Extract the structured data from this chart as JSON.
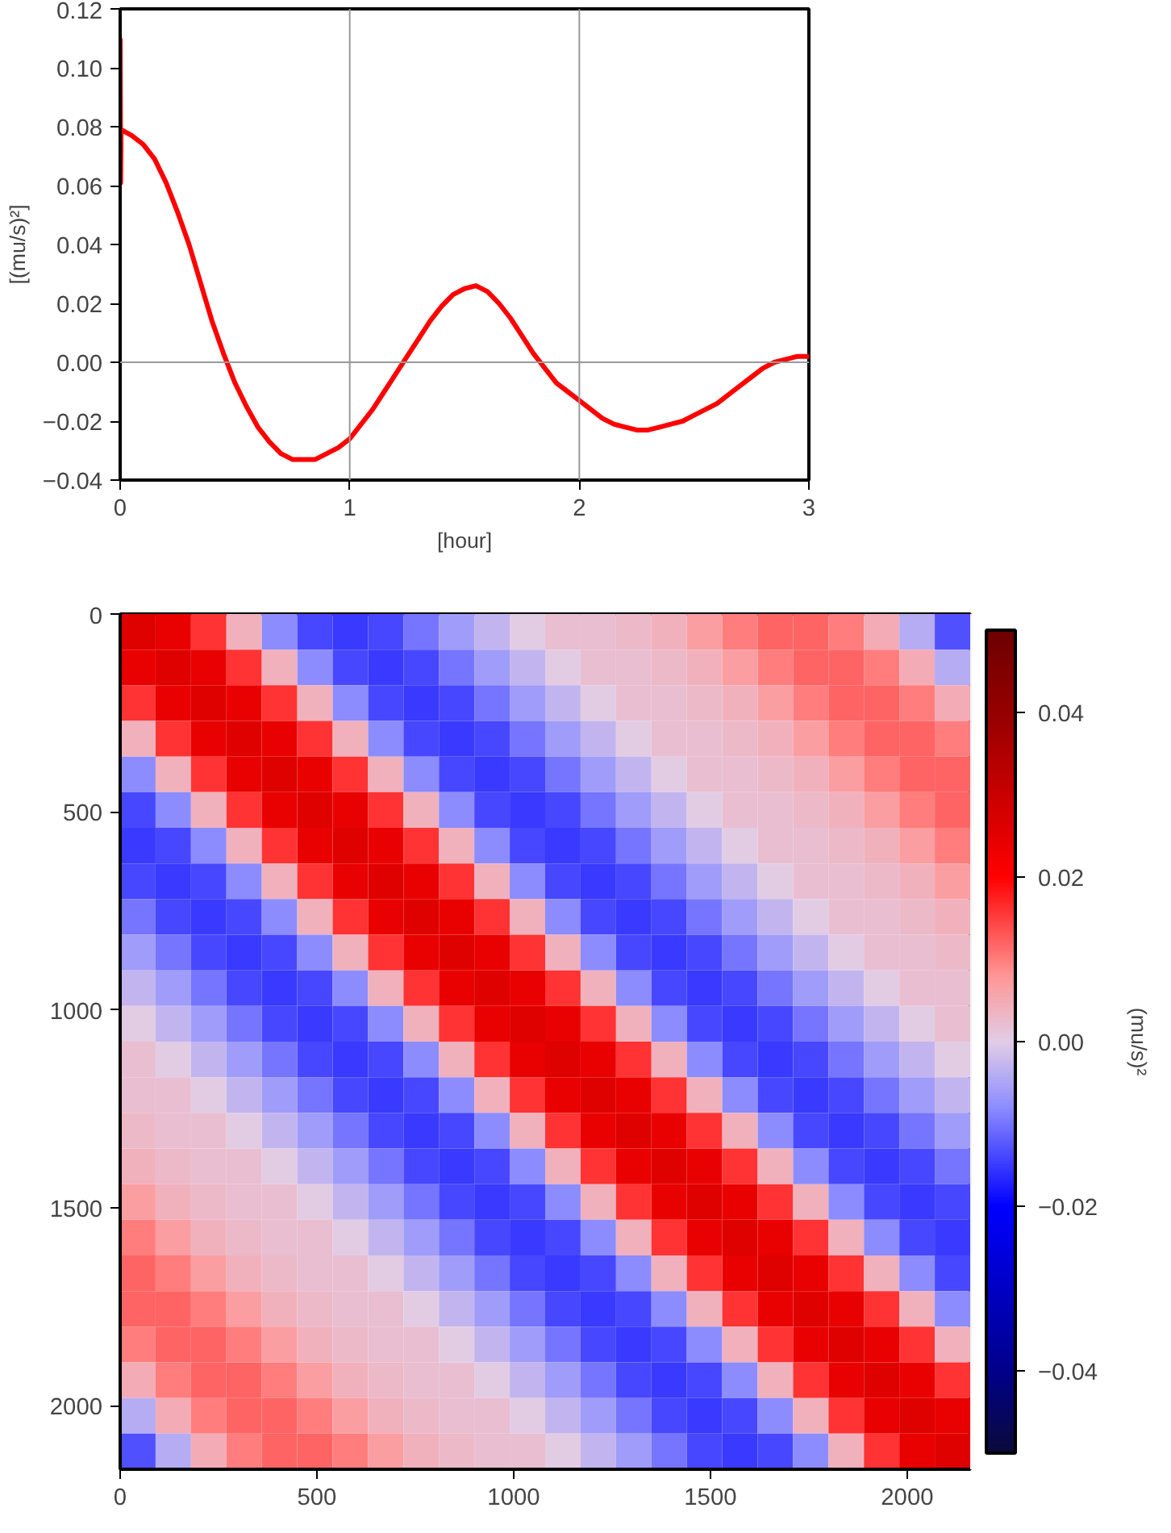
{
  "chart_data": [
    {
      "type": "line",
      "xlabel": "[hour]",
      "ylabel": "[(mu/s)²]",
      "xlim": [
        0,
        3
      ],
      "ylim": [
        -0.04,
        0.12
      ],
      "xticks": [
        0,
        1,
        2,
        3
      ],
      "yticks": [
        {
          "value": -0.04,
          "label": "−0.04"
        },
        {
          "value": -0.02,
          "label": "−0.02"
        },
        {
          "value": 0,
          "label": "0.00"
        },
        {
          "value": 0.02,
          "label": "0.02"
        },
        {
          "value": 0.04,
          "label": "0.04"
        },
        {
          "value": 0.06,
          "label": "0.06"
        },
        {
          "value": 0.08,
          "label": "0.08"
        },
        {
          "value": 0.1,
          "label": "0.10"
        },
        {
          "value": 0.12,
          "label": "0.12"
        }
      ],
      "ref_lines": [
        {
          "axis": "x",
          "value": 1,
          "color": "#999999"
        },
        {
          "axis": "x",
          "value": 2,
          "color": "#999999"
        },
        {
          "axis": "y",
          "value": 0,
          "color": "#999999"
        }
      ],
      "x": [
        0,
        0.002,
        0.004,
        0.05,
        0.1,
        0.15,
        0.2,
        0.25,
        0.3,
        0.35,
        0.4,
        0.45,
        0.5,
        0.55,
        0.6,
        0.65,
        0.7,
        0.75,
        0.8,
        0.85,
        0.9,
        0.95,
        1.0,
        1.05,
        1.1,
        1.15,
        1.2,
        1.25,
        1.3,
        1.35,
        1.4,
        1.45,
        1.5,
        1.55,
        1.6,
        1.65,
        1.7,
        1.75,
        1.8,
        1.85,
        1.9,
        1.95,
        2.0,
        2.05,
        2.1,
        2.15,
        2.2,
        2.25,
        2.3,
        2.35,
        2.4,
        2.45,
        2.5,
        2.55,
        2.6,
        2.65,
        2.7,
        2.75,
        2.8,
        2.85,
        2.9,
        2.95,
        3.0
      ],
      "series": [
        {
          "color": "#ff0000",
          "values": [
            0.11,
            0.061,
            0.079,
            0.077,
            0.074,
            0.069,
            0.061,
            0.051,
            0.04,
            0.027,
            0.014,
            0.003,
            -0.007,
            -0.015,
            -0.022,
            -0.027,
            -0.031,
            -0.033,
            -0.033,
            -0.033,
            -0.031,
            -0.029,
            -0.026,
            -0.021,
            -0.016,
            -0.01,
            -0.004,
            0.002,
            0.008,
            0.014,
            0.019,
            0.023,
            0.025,
            0.026,
            0.024,
            0.02,
            0.015,
            0.009,
            0.003,
            -0.002,
            -0.007,
            -0.01,
            -0.013,
            -0.016,
            -0.019,
            -0.021,
            -0.022,
            -0.023,
            -0.023,
            -0.022,
            -0.021,
            -0.02,
            -0.018,
            -0.016,
            -0.014,
            -0.011,
            -0.008,
            -0.005,
            -0.002,
            0.0,
            0.001,
            0.002,
            0.002
          ]
        }
      ]
    },
    {
      "type": "heatmap",
      "clabel": "(mu/s)²",
      "xlim": [
        0,
        2160
      ],
      "ylim": [
        2160,
        0
      ],
      "xticks": [
        0,
        500,
        1000,
        1500,
        2000
      ],
      "yticks": [
        0,
        500,
        1000,
        1500,
        2000
      ],
      "clim": [
        -0.05,
        0.05
      ],
      "cticks": [
        {
          "value": -0.04,
          "label": "−0.04"
        },
        {
          "value": -0.02,
          "label": "−0.02"
        },
        {
          "value": 0,
          "label": "0.00"
        },
        {
          "value": 0.02,
          "label": "0.02"
        },
        {
          "value": 0.04,
          "label": "0.04"
        }
      ],
      "x": [
        45,
        135,
        225,
        315,
        405,
        495,
        585,
        675,
        765,
        855,
        945,
        1035,
        1125,
        1215,
        1305,
        1395,
        1485,
        1575,
        1665,
        1755,
        1845,
        1935,
        2025,
        2115
      ],
      "y": [
        45,
        135,
        225,
        315,
        405,
        495,
        585,
        675,
        765,
        855,
        945,
        1035,
        1125,
        1215,
        1305,
        1395,
        1485,
        1575,
        1665,
        1755,
        1845,
        1935,
        2025,
        2115
      ],
      "cells": [
        [
          0.026,
          0.024,
          0.016,
          0.004,
          -0.008,
          -0.014,
          -0.015,
          -0.014,
          -0.01,
          -0.006,
          -0.003,
          0,
          0.002,
          0.002,
          0.003,
          0.004,
          0.007,
          0.01,
          0.012,
          0.012,
          0.01,
          0.005,
          -0.004,
          -0.013
        ],
        [
          0.024,
          0.026,
          0.024,
          0.016,
          0.004,
          -0.008,
          -0.014,
          -0.015,
          -0.014,
          -0.01,
          -0.006,
          -0.003,
          0,
          0.002,
          0.002,
          0.003,
          0.004,
          0.007,
          0.01,
          0.012,
          0.012,
          0.01,
          0.005,
          -0.004
        ],
        [
          0.016,
          0.024,
          0.026,
          0.024,
          0.016,
          0.004,
          -0.008,
          -0.014,
          -0.015,
          -0.014,
          -0.01,
          -0.006,
          -0.003,
          0,
          0.002,
          0.002,
          0.003,
          0.004,
          0.007,
          0.01,
          0.012,
          0.012,
          0.01,
          0.005
        ],
        [
          0.004,
          0.016,
          0.024,
          0.026,
          0.024,
          0.016,
          0.004,
          -0.008,
          -0.014,
          -0.015,
          -0.014,
          -0.01,
          -0.006,
          -0.003,
          0,
          0.002,
          0.002,
          0.003,
          0.004,
          0.007,
          0.01,
          0.012,
          0.012,
          0.01
        ],
        [
          -0.008,
          0.004,
          0.016,
          0.024,
          0.026,
          0.024,
          0.016,
          0.004,
          -0.008,
          -0.014,
          -0.015,
          -0.014,
          -0.01,
          -0.006,
          -0.003,
          0,
          0.002,
          0.002,
          0.003,
          0.004,
          0.007,
          0.01,
          0.012,
          0.012
        ],
        [
          -0.014,
          -0.008,
          0.004,
          0.016,
          0.024,
          0.026,
          0.024,
          0.016,
          0.004,
          -0.008,
          -0.014,
          -0.015,
          -0.014,
          -0.01,
          -0.006,
          -0.003,
          0,
          0.002,
          0.002,
          0.003,
          0.004,
          0.007,
          0.01,
          0.012
        ],
        [
          -0.015,
          -0.014,
          -0.008,
          0.004,
          0.016,
          0.024,
          0.026,
          0.024,
          0.016,
          0.004,
          -0.008,
          -0.014,
          -0.015,
          -0.014,
          -0.01,
          -0.006,
          -0.003,
          0,
          0.002,
          0.002,
          0.003,
          0.004,
          0.007,
          0.01
        ],
        [
          -0.014,
          -0.015,
          -0.014,
          -0.008,
          0.004,
          0.016,
          0.024,
          0.026,
          0.024,
          0.016,
          0.004,
          -0.008,
          -0.014,
          -0.015,
          -0.014,
          -0.01,
          -0.006,
          -0.003,
          0,
          0.002,
          0.002,
          0.003,
          0.004,
          0.007
        ],
        [
          -0.01,
          -0.014,
          -0.015,
          -0.014,
          -0.008,
          0.004,
          0.016,
          0.024,
          0.026,
          0.024,
          0.016,
          0.004,
          -0.008,
          -0.014,
          -0.015,
          -0.014,
          -0.01,
          -0.006,
          -0.003,
          0,
          0.002,
          0.002,
          0.003,
          0.004
        ],
        [
          -0.006,
          -0.01,
          -0.014,
          -0.015,
          -0.014,
          -0.008,
          0.004,
          0.016,
          0.024,
          0.026,
          0.024,
          0.016,
          0.004,
          -0.008,
          -0.014,
          -0.015,
          -0.014,
          -0.01,
          -0.006,
          -0.003,
          0,
          0.002,
          0.002,
          0.003
        ],
        [
          -0.003,
          -0.006,
          -0.01,
          -0.014,
          -0.015,
          -0.014,
          -0.008,
          0.004,
          0.016,
          0.024,
          0.026,
          0.024,
          0.016,
          0.004,
          -0.008,
          -0.014,
          -0.015,
          -0.014,
          -0.01,
          -0.006,
          -0.003,
          0,
          0.002,
          0.002
        ],
        [
          0,
          -0.003,
          -0.006,
          -0.01,
          -0.014,
          -0.015,
          -0.014,
          -0.008,
          0.004,
          0.016,
          0.024,
          0.026,
          0.024,
          0.016,
          0.004,
          -0.008,
          -0.014,
          -0.015,
          -0.014,
          -0.01,
          -0.006,
          -0.003,
          0,
          0.002
        ],
        [
          0.002,
          0,
          -0.003,
          -0.006,
          -0.01,
          -0.014,
          -0.015,
          -0.014,
          -0.008,
          0.004,
          0.016,
          0.024,
          0.026,
          0.024,
          0.016,
          0.004,
          -0.008,
          -0.014,
          -0.015,
          -0.014,
          -0.01,
          -0.006,
          -0.003,
          0
        ],
        [
          0.002,
          0.002,
          0,
          -0.003,
          -0.006,
          -0.01,
          -0.014,
          -0.015,
          -0.014,
          -0.008,
          0.004,
          0.016,
          0.024,
          0.026,
          0.024,
          0.016,
          0.004,
          -0.008,
          -0.014,
          -0.015,
          -0.014,
          -0.01,
          -0.006,
          -0.003
        ],
        [
          0.003,
          0.002,
          0.002,
          0,
          -0.003,
          -0.006,
          -0.01,
          -0.014,
          -0.015,
          -0.014,
          -0.008,
          0.004,
          0.016,
          0.024,
          0.026,
          0.024,
          0.016,
          0.004,
          -0.008,
          -0.014,
          -0.015,
          -0.014,
          -0.01,
          -0.006
        ],
        [
          0.004,
          0.003,
          0.002,
          0.002,
          0,
          -0.003,
          -0.006,
          -0.01,
          -0.014,
          -0.015,
          -0.014,
          -0.008,
          0.004,
          0.016,
          0.024,
          0.026,
          0.024,
          0.016,
          0.004,
          -0.008,
          -0.014,
          -0.015,
          -0.014,
          -0.01
        ],
        [
          0.007,
          0.004,
          0.003,
          0.002,
          0.002,
          0,
          -0.003,
          -0.006,
          -0.01,
          -0.014,
          -0.015,
          -0.014,
          -0.008,
          0.004,
          0.016,
          0.024,
          0.026,
          0.024,
          0.016,
          0.004,
          -0.008,
          -0.014,
          -0.015,
          -0.014
        ],
        [
          0.01,
          0.007,
          0.004,
          0.003,
          0.002,
          0.002,
          0,
          -0.003,
          -0.006,
          -0.01,
          -0.014,
          -0.015,
          -0.014,
          -0.008,
          0.004,
          0.016,
          0.024,
          0.026,
          0.024,
          0.016,
          0.004,
          -0.008,
          -0.014,
          -0.015
        ],
        [
          0.012,
          0.01,
          0.007,
          0.004,
          0.003,
          0.002,
          0.002,
          0,
          -0.003,
          -0.006,
          -0.01,
          -0.014,
          -0.015,
          -0.014,
          -0.008,
          0.004,
          0.016,
          0.024,
          0.026,
          0.024,
          0.016,
          0.004,
          -0.008,
          -0.014
        ],
        [
          0.012,
          0.012,
          0.01,
          0.007,
          0.004,
          0.003,
          0.002,
          0.002,
          0,
          -0.003,
          -0.006,
          -0.01,
          -0.014,
          -0.015,
          -0.014,
          -0.008,
          0.004,
          0.016,
          0.024,
          0.026,
          0.024,
          0.016,
          0.004,
          -0.008
        ],
        [
          0.01,
          0.012,
          0.012,
          0.01,
          0.007,
          0.004,
          0.003,
          0.002,
          0.002,
          0,
          -0.003,
          -0.006,
          -0.01,
          -0.014,
          -0.015,
          -0.014,
          -0.008,
          0.004,
          0.016,
          0.024,
          0.026,
          0.024,
          0.016,
          0.004
        ],
        [
          0.005,
          0.01,
          0.012,
          0.012,
          0.01,
          0.007,
          0.004,
          0.003,
          0.002,
          0.002,
          0,
          -0.003,
          -0.006,
          -0.01,
          -0.014,
          -0.015,
          -0.014,
          -0.008,
          0.004,
          0.016,
          0.024,
          0.026,
          0.024,
          0.016
        ],
        [
          -0.004,
          0.005,
          0.01,
          0.012,
          0.012,
          0.01,
          0.007,
          0.004,
          0.003,
          0.002,
          0.002,
          0,
          -0.003,
          -0.006,
          -0.01,
          -0.014,
          -0.015,
          -0.014,
          -0.008,
          0.004,
          0.016,
          0.024,
          0.026,
          0.024
        ],
        [
          -0.013,
          -0.004,
          0.005,
          0.01,
          0.012,
          0.012,
          0.01,
          0.007,
          0.004,
          0.003,
          0.002,
          0.002,
          0,
          -0.003,
          -0.006,
          -0.01,
          -0.014,
          -0.015,
          -0.014,
          -0.008,
          0.004,
          0.016,
          0.024,
          0.026
        ]
      ]
    }
  ]
}
